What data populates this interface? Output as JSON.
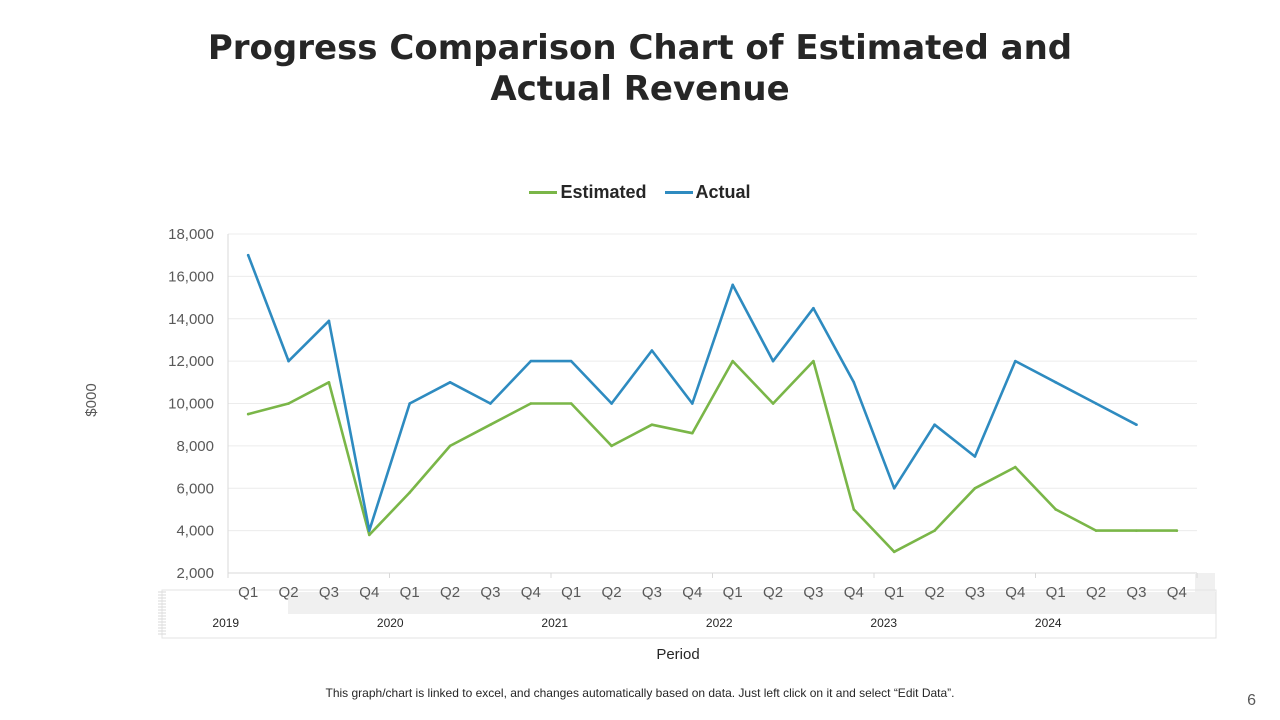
{
  "slide": {
    "title": "Progress Comparison Chart of Estimated and Actual Revenue",
    "footnote": "This graph/chart is linked to excel, and changes automatically based on data. Just left click on it and select “Edit Data”.",
    "page_number": "6"
  },
  "chart_data": {
    "type": "line",
    "title": "",
    "xlabel": "Period",
    "ylabel": "$000",
    "ylim": [
      2000,
      18000
    ],
    "yticks": [
      2000,
      4000,
      6000,
      8000,
      10000,
      12000,
      14000,
      16000,
      18000
    ],
    "ytick_labels": [
      "2,000",
      "4,000",
      "6,000",
      "8,000",
      "10,000",
      "12,000",
      "14,000",
      "16,000",
      "18,000"
    ],
    "grid": true,
    "legend_position": "top-center",
    "categories": [
      "Q1",
      "Q2",
      "Q3",
      "Q4",
      "Q1",
      "Q2",
      "Q3",
      "Q4",
      "Q1",
      "Q2",
      "Q3",
      "Q4",
      "Q1",
      "Q2",
      "Q3",
      "Q4",
      "Q1",
      "Q2",
      "Q3",
      "Q4",
      "Q1",
      "Q2",
      "Q3",
      "Q4"
    ],
    "groups": [
      "2019",
      "2020",
      "2021",
      "2022",
      "2023",
      "2024"
    ],
    "series": [
      {
        "name": "Estimated",
        "color": "#7ab648",
        "values": [
          9500,
          10000,
          11000,
          3800,
          5800,
          8000,
          9000,
          10000,
          10000,
          8000,
          9000,
          8600,
          12000,
          10000,
          12000,
          5000,
          3000,
          4000,
          6000,
          7000,
          5000,
          4000,
          4000,
          4000
        ]
      },
      {
        "name": "Actual",
        "color": "#2e8bc0",
        "values": [
          17000,
          12000,
          13900,
          4000,
          10000,
          11000,
          10000,
          12000,
          12000,
          10000,
          12500,
          10000,
          15600,
          12000,
          14500,
          11000,
          6000,
          9000,
          7500,
          12000,
          11000,
          10000,
          9000,
          null
        ]
      }
    ]
  }
}
